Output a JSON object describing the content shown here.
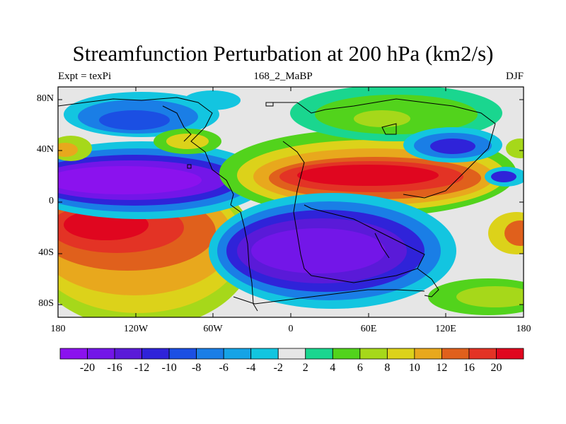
{
  "header": {
    "title": "Streamfunction Perturbation at 200 hPa (km2/s)",
    "left": "Expt = texPi",
    "center": "168_2_MaBP",
    "right": "DJF"
  },
  "map": {
    "y_ticks": [
      "80N",
      "40N",
      "0",
      "40S",
      "80S"
    ],
    "x_ticks": [
      "180",
      "120W",
      "60W",
      "0",
      "60E",
      "120E",
      "180"
    ],
    "lat_range": [
      -90,
      90
    ],
    "lon_range": [
      -180,
      180
    ],
    "land_outline_color": "#000000",
    "zero_band_color": "#e6e6e6"
  },
  "colorbar": {
    "labels": [
      "-20",
      "-16",
      "-12",
      "-10",
      "-8",
      "-6",
      "-4",
      "-2",
      "2",
      "4",
      "6",
      "8",
      "10",
      "12",
      "16",
      "20"
    ],
    "colors": [
      "#8b12ee",
      "#7316e8",
      "#5a1ad8",
      "#2f23d9",
      "#1b4fe3",
      "#1a7ee6",
      "#15a3e6",
      "#13c5e0",
      "#e6e6e6",
      "#1ad68f",
      "#52d31c",
      "#a6d81a",
      "#dcd21a",
      "#e8a81d",
      "#e0601c",
      "#e33325",
      "#e0061f"
    ]
  }
}
